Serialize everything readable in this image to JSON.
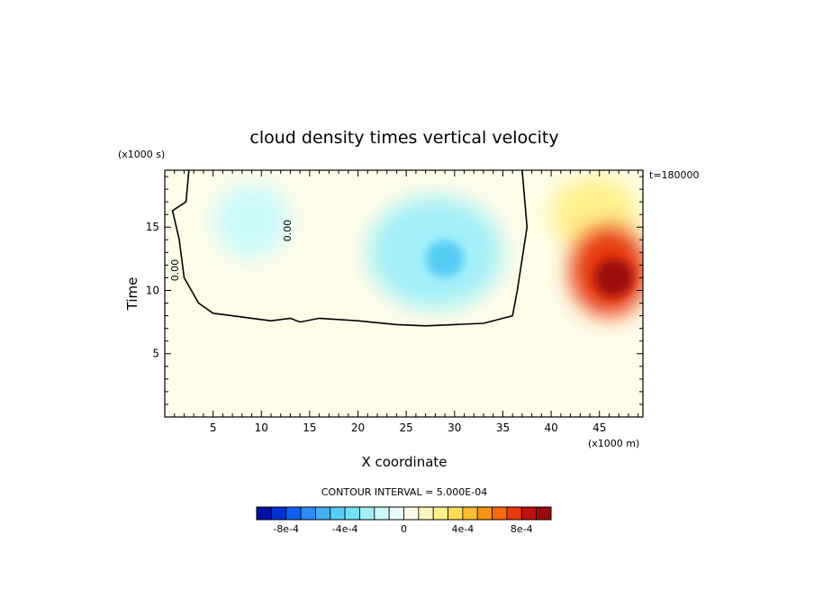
{
  "chart_data": {
    "type": "heatmap",
    "title": "cloud density times vertical velocity",
    "xlabel": "X coordinate",
    "ylabel": "Time",
    "x_unit_label": "(x1000 m)",
    "y_unit_label": "(x1000 s)",
    "time_label": "t=180000",
    "xlim": [
      0,
      49.5
    ],
    "ylim": [
      0,
      19.5
    ],
    "x_ticks": [
      5,
      10,
      15,
      20,
      25,
      30,
      35,
      40,
      45
    ],
    "y_ticks": [
      5,
      10,
      15
    ],
    "x_tick_labels": [
      "5",
      "10",
      "15",
      "20",
      "25",
      "30",
      "35",
      "40",
      "45"
    ],
    "y_tick_labels": [
      "5",
      "10",
      "15"
    ],
    "contour_line_labels": [
      "0.00",
      "0.00"
    ],
    "contour_interval_text": "CONTOUR INTERVAL = 5.000E-04",
    "colorbar": {
      "min": -0.001,
      "max": 0.001,
      "step": 0.0001,
      "tick_values": [
        -0.0008,
        -0.0004,
        0,
        0.0004,
        0.0008
      ],
      "tick_labels": [
        "-8e-4",
        "-4e-4",
        "0",
        "4e-4",
        "8e-4"
      ],
      "colors": [
        "#0010a0",
        "#0030d0",
        "#1060f0",
        "#2c8cf8",
        "#45b0f8",
        "#55ccf6",
        "#74e2f6",
        "#a4f0f8",
        "#ccfafc",
        "#eafdfe",
        "#fffde8",
        "#fff6c0",
        "#fff08c",
        "#fedc5a",
        "#fbbf2c",
        "#f99410",
        "#f76a08",
        "#e63808",
        "#c01010",
        "#9e0a0a"
      ]
    },
    "background_color": "#fffde8",
    "regions": [
      {
        "kind": "negative",
        "shape": "blob",
        "center": [
          9,
          15.5
        ],
        "radius": [
          4,
          3
        ],
        "value": -0.0002
      },
      {
        "kind": "negative",
        "shape": "blob",
        "center": [
          28,
          13
        ],
        "radius": [
          7,
          4.5
        ],
        "value": -0.0003
      },
      {
        "kind": "negative",
        "shape": "blob",
        "center": [
          29,
          12.5
        ],
        "radius": [
          2,
          1.5
        ],
        "value": -0.0005
      },
      {
        "kind": "positive",
        "shape": "blob",
        "center": [
          44.5,
          16
        ],
        "radius": [
          4.5,
          3
        ],
        "value": 0.0002
      },
      {
        "kind": "positive",
        "shape": "blob",
        "center": [
          46,
          11.5
        ],
        "radius": [
          4,
          3.5
        ],
        "value": 0.0007
      },
      {
        "kind": "positive",
        "shape": "blob",
        "center": [
          46.5,
          11
        ],
        "radius": [
          2,
          1.5
        ],
        "value": 0.0009
      }
    ],
    "zero_contour": [
      [
        2.5,
        19.5
      ],
      [
        2.2,
        17
      ],
      [
        0.8,
        16.3
      ],
      [
        1.5,
        14
      ],
      [
        2,
        11
      ],
      [
        3.5,
        9
      ],
      [
        5,
        8.2
      ],
      [
        7,
        8
      ],
      [
        9,
        7.8
      ],
      [
        11,
        7.6
      ],
      [
        13,
        7.8
      ],
      [
        14,
        7.5
      ],
      [
        16,
        7.8
      ],
      [
        20,
        7.6
      ],
      [
        24,
        7.3
      ],
      [
        27,
        7.2
      ],
      [
        30,
        7.3
      ],
      [
        33,
        7.4
      ],
      [
        36,
        8
      ],
      [
        36.5,
        10
      ],
      [
        37.5,
        15
      ],
      [
        37,
        19.5
      ]
    ]
  }
}
